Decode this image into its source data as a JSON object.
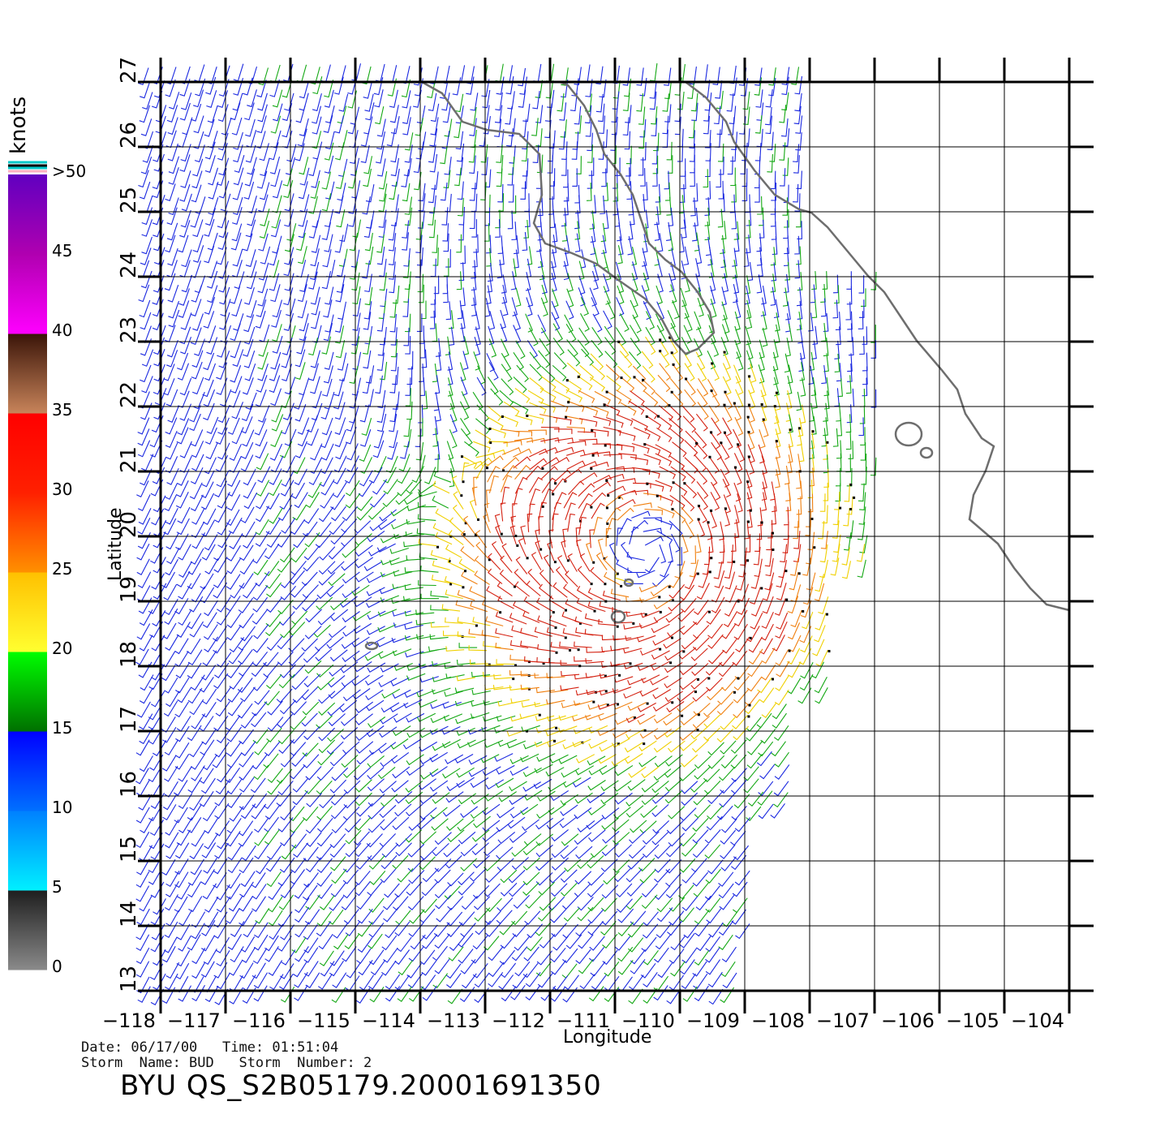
{
  "colorbar": {
    "unit_label": "knots",
    "ticks": [
      ">50",
      "45",
      "40",
      "35",
      "30",
      "25",
      "20",
      "15",
      "10",
      "5",
      "0"
    ],
    "bands": [
      {
        "from": 0,
        "to": 5,
        "colors": [
          "#8a8a8a",
          "#1e1e1e"
        ]
      },
      {
        "from": 5,
        "to": 10,
        "colors": [
          "#00f0ff",
          "#0080ff"
        ]
      },
      {
        "from": 10,
        "to": 15,
        "colors": [
          "#0070ff",
          "#0000ff"
        ]
      },
      {
        "from": 15,
        "to": 20,
        "colors": [
          "#007000",
          "#00ff00"
        ]
      },
      {
        "from": 20,
        "to": 25,
        "colors": [
          "#ffff30",
          "#ffc000"
        ]
      },
      {
        "from": 25,
        "to": 30,
        "colors": [
          "#ff9000",
          "#ff2000"
        ]
      },
      {
        "from": 30,
        "to": 35,
        "colors": [
          "#ff2000",
          "#ff0000"
        ]
      },
      {
        "from": 35,
        "to": 40,
        "colors": [
          "#c8845a",
          "#3a1408"
        ]
      },
      {
        "from": 40,
        "to": 45,
        "colors": [
          "#ff00ff",
          "#b000b0"
        ]
      },
      {
        "from": 45,
        "to": 50,
        "colors": [
          "#b000b0",
          "#6000c0"
        ]
      }
    ]
  },
  "map": {
    "x_axis_label": "Longitude",
    "y_axis_label": "Latitude",
    "lon_range": [
      -118,
      -104
    ],
    "lat_range": [
      13,
      27
    ],
    "lon_ticks": [
      "−118",
      "−117",
      "−116",
      "−115",
      "−114",
      "−113",
      "−112",
      "−111",
      "−110",
      "−109",
      "−108",
      "−107",
      "−106",
      "−105",
      "−104"
    ],
    "lat_ticks": [
      "13",
      "14",
      "15",
      "16",
      "17",
      "18",
      "19",
      "20",
      "21",
      "22",
      "23",
      "24",
      "25",
      "26",
      "27"
    ],
    "storm_center": {
      "lon": -110.5,
      "lat": 19.8
    },
    "colors": {
      "coast": "#6e6e6e",
      "grid": "#000000"
    }
  },
  "info": {
    "date_line": "Date: 06/17/00   Time: 01:51:04",
    "storm_line": "Storm  Name: BUD   Storm  Number: 2",
    "title": "BYU  QS_S2B05179.20001691350"
  }
}
